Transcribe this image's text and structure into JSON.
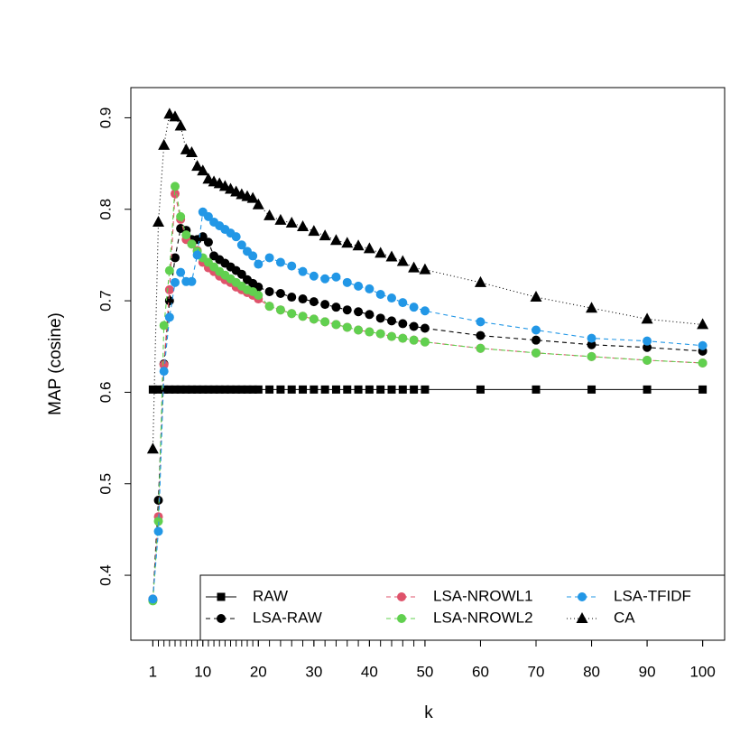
{
  "chart_data": {
    "type": "line",
    "y_label": "MAP (cosine)",
    "x_label": "k",
    "x": [
      1,
      2,
      3,
      4,
      5,
      6,
      7,
      8,
      9,
      10,
      11,
      12,
      13,
      14,
      15,
      16,
      17,
      18,
      19,
      20,
      22,
      24,
      26,
      28,
      30,
      32,
      34,
      36,
      38,
      40,
      42,
      44,
      46,
      48,
      50,
      60,
      70,
      80,
      90,
      100
    ],
    "xlim": [
      -2.96,
      103.96
    ],
    "xticks": [
      1,
      10,
      20,
      30,
      40,
      50,
      60,
      70,
      80,
      90,
      100
    ],
    "ylim": [
      0.329,
      0.933
    ],
    "yticks": [
      0.4,
      0.5,
      0.6,
      0.7,
      0.8,
      0.9
    ],
    "legend": "bottomright",
    "series": [
      {
        "name": "RAW",
        "color": "#000000",
        "marker": "square",
        "dash": "solid",
        "values": [
          0.603,
          0.603,
          0.603,
          0.603,
          0.603,
          0.603,
          0.603,
          0.603,
          0.603,
          0.603,
          0.603,
          0.603,
          0.603,
          0.603,
          0.603,
          0.603,
          0.603,
          0.603,
          0.603,
          0.603,
          0.603,
          0.603,
          0.603,
          0.603,
          0.603,
          0.603,
          0.603,
          0.603,
          0.603,
          0.603,
          0.603,
          0.603,
          0.603,
          0.603,
          0.603,
          0.603,
          0.603,
          0.603,
          0.603,
          0.603
        ]
      },
      {
        "name": "LSA-RAW",
        "color": "#000000",
        "marker": "circle",
        "dash": "dashed",
        "values": [
          0.373,
          0.482,
          0.631,
          0.7,
          0.747,
          0.779,
          0.777,
          0.767,
          0.767,
          0.77,
          0.764,
          0.749,
          0.745,
          0.741,
          0.737,
          0.733,
          0.729,
          0.723,
          0.719,
          0.715,
          0.71,
          0.708,
          0.704,
          0.702,
          0.699,
          0.696,
          0.693,
          0.69,
          0.688,
          0.685,
          0.681,
          0.678,
          0.675,
          0.672,
          0.67,
          0.662,
          0.657,
          0.652,
          0.649,
          0.645
        ]
      },
      {
        "name": "LSA-NROWL1",
        "color": "#DF536B",
        "marker": "circle",
        "dash": "dashed",
        "values": [
          0.374,
          0.464,
          0.63,
          0.712,
          0.817,
          0.789,
          0.767,
          0.762,
          0.755,
          0.742,
          0.736,
          0.732,
          0.727,
          0.723,
          0.72,
          0.715,
          0.712,
          0.709,
          0.706,
          0.702,
          0.694,
          0.69,
          0.686,
          0.683,
          0.68,
          0.677,
          0.674,
          0.671,
          0.668,
          0.666,
          0.664,
          0.661,
          0.659,
          0.657,
          0.655,
          0.648,
          0.643,
          0.639,
          0.635,
          0.632
        ]
      },
      {
        "name": "LSA-NROWL2",
        "color": "#61D04F",
        "marker": "circle",
        "dash": "dashed",
        "values": [
          0.372,
          0.459,
          0.673,
          0.733,
          0.825,
          0.792,
          0.772,
          0.762,
          0.754,
          0.747,
          0.742,
          0.737,
          0.732,
          0.728,
          0.724,
          0.72,
          0.716,
          0.712,
          0.71,
          0.706,
          0.694,
          0.69,
          0.686,
          0.683,
          0.68,
          0.677,
          0.674,
          0.671,
          0.668,
          0.666,
          0.664,
          0.661,
          0.659,
          0.657,
          0.655,
          0.648,
          0.643,
          0.639,
          0.635,
          0.632
        ]
      },
      {
        "name": "LSA-TFIDF",
        "color": "#2297E6",
        "marker": "circle",
        "dash": "dashed",
        "values": [
          0.374,
          0.448,
          0.623,
          0.682,
          0.72,
          0.731,
          0.721,
          0.721,
          0.75,
          0.797,
          0.792,
          0.786,
          0.782,
          0.778,
          0.774,
          0.77,
          0.761,
          0.754,
          0.749,
          0.74,
          0.747,
          0.742,
          0.738,
          0.732,
          0.727,
          0.724,
          0.726,
          0.72,
          0.716,
          0.713,
          0.707,
          0.703,
          0.698,
          0.693,
          0.689,
          0.677,
          0.668,
          0.659,
          0.656,
          0.651
        ]
      },
      {
        "name": "CA",
        "color": "#000000",
        "marker": "triangle",
        "dash": "dotted",
        "values": [
          0.538,
          0.786,
          0.87,
          0.904,
          0.901,
          0.891,
          0.865,
          0.862,
          0.847,
          0.842,
          0.833,
          0.83,
          0.828,
          0.825,
          0.822,
          0.819,
          0.816,
          0.814,
          0.812,
          0.805,
          0.793,
          0.788,
          0.785,
          0.781,
          0.776,
          0.771,
          0.766,
          0.763,
          0.76,
          0.757,
          0.752,
          0.748,
          0.743,
          0.736,
          0.734,
          0.72,
          0.704,
          0.692,
          0.68,
          0.674
        ]
      }
    ]
  }
}
